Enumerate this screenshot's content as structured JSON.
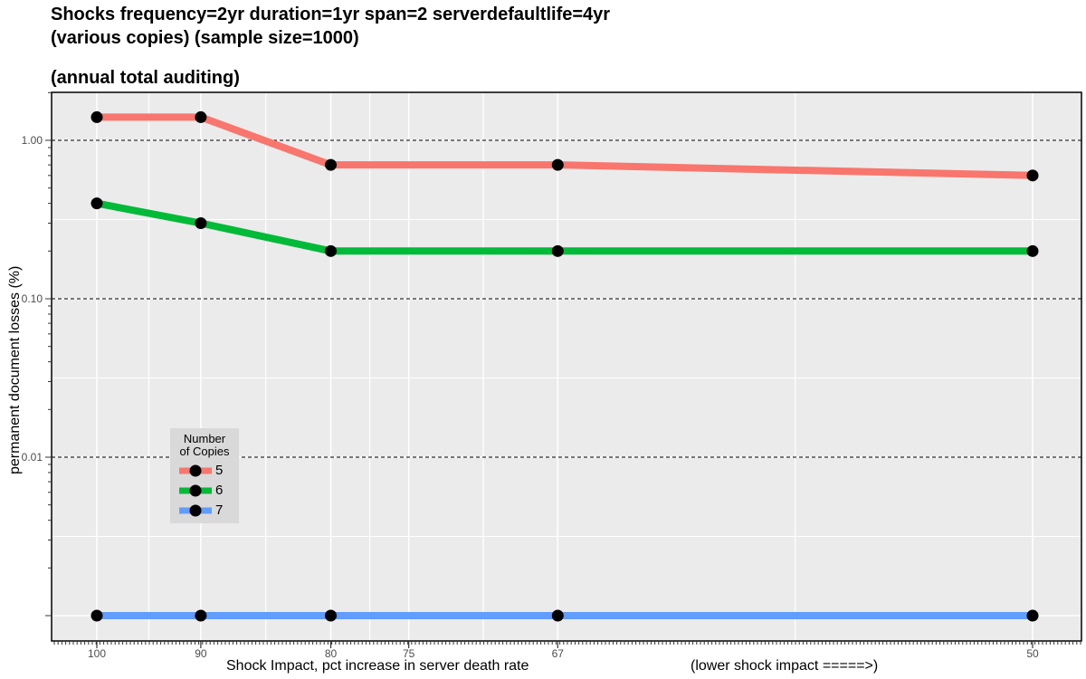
{
  "chart_data": {
    "type": "line",
    "title_lines": [
      "Shocks frequency=2yr duration=1yr span=2 serverdefaultlife=4yr",
      "(various copies) (sample size=1000)",
      "(annual total auditing)"
    ],
    "ylabel": "permanent document losses (%)",
    "xlabel": "Shock Impact, pct increase in server death rate",
    "xlabel_note": "(lower shock impact =====>)",
    "x_scale": "reciprocal",
    "y_scale": "log",
    "x_ticks": [
      "100",
      "90",
      "80",
      "75",
      "67",
      "50"
    ],
    "y_ticks": [
      "1.00",
      "0.10",
      "0.01"
    ],
    "x": [
      100,
      90,
      80,
      67,
      50
    ],
    "series": [
      {
        "name": "5",
        "color": "#F8766D",
        "values": [
          1.4,
          1.4,
          0.7,
          0.7,
          0.6
        ]
      },
      {
        "name": "6",
        "color": "#00BA38",
        "values": [
          0.4,
          0.3,
          0.2,
          0.2,
          0.2
        ]
      },
      {
        "name": "7",
        "color": "#619CFF",
        "values": [
          0.001,
          0.001,
          0.001,
          0.001,
          0.001
        ]
      }
    ],
    "legend": {
      "title": "Number of Copies",
      "placement": "bottom-left"
    },
    "grid": true,
    "background": "#ebebeb"
  }
}
